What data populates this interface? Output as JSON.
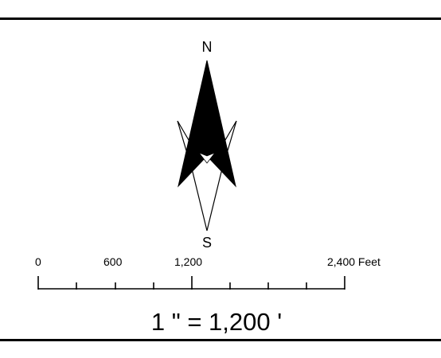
{
  "north_arrow": {
    "north_label": "N",
    "south_label": "S"
  },
  "scale_bar": {
    "unit": "Feet",
    "labels": [
      "0",
      "600",
      "1,200",
      "2,400 Feet"
    ],
    "minor_divisions": 8
  },
  "scale_text": "1 \" = 1,200 '"
}
